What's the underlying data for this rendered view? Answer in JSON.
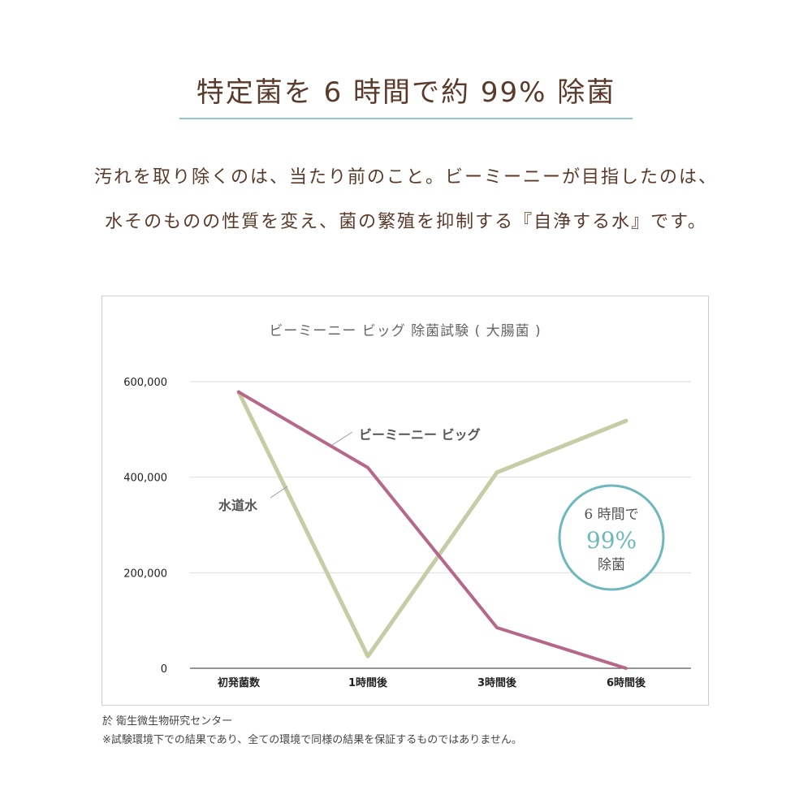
{
  "headline": "特定菌を 6 時間で約 99% 除菌",
  "lead": {
    "line1": "汚れを取り除くのは、当たり前のこと。ビーミーニーが目指したのは、",
    "line2": "水そのものの性質を変え、菌の繁殖を抑制する『自浄する水』です。"
  },
  "notes": {
    "source": "於 衛生微生物研究センター",
    "disclaimer": "※試験環境下での結果であり、全ての環境で同様の結果を保証するものではありません。"
  },
  "colors": {
    "bmini": "#b5688a",
    "tap": "#c8cca6",
    "accent": "#6cb8bc",
    "text": "#5a3a2a",
    "grid": "#dddddd"
  },
  "chart_data": {
    "type": "line",
    "title": "ビーミーニー ビッグ 除菌試験 ( 大腸菌 )",
    "categories": [
      "初発菌数",
      "1時間後",
      "3時間後",
      "6時間後"
    ],
    "y_ticks": [
      "0",
      "200,000",
      "400,000",
      "600,000"
    ],
    "ylim": [
      0,
      600000
    ],
    "grid": true,
    "series": [
      {
        "name": "ビーミーニー ビッグ",
        "color": "#b5688a",
        "values": [
          578000,
          420000,
          85000,
          0
        ]
      },
      {
        "name": "水道水",
        "color": "#c8cca6",
        "values": [
          578000,
          25000,
          410000,
          518000
        ]
      }
    ],
    "callout": {
      "line1": "6 時間で",
      "line2": "99%",
      "line3": "除菌"
    }
  }
}
